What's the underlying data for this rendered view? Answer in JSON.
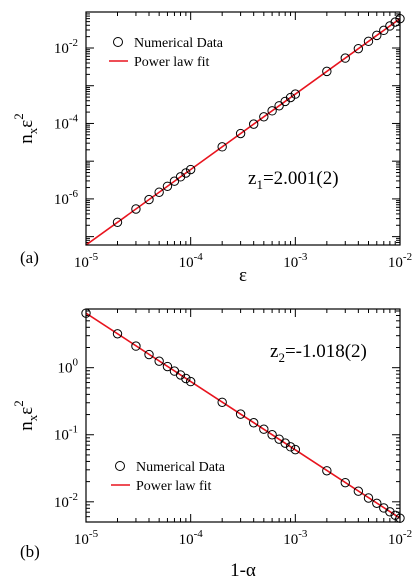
{
  "chart_data": [
    {
      "type": "scatter",
      "panel_label": "(a)",
      "xlabel": "ε",
      "ylabel": {
        "base": "n",
        "sub": "x",
        "factor": "ε",
        "sup": "2"
      },
      "xscale": "log",
      "yscale": "log",
      "xlim": [
        1e-05,
        0.01
      ],
      "ylim": [
        6e-08,
        0.09
      ],
      "xticks": [
        {
          "value": 1e-05,
          "base": "10",
          "exp": "-5"
        },
        {
          "value": 0.0001,
          "base": "10",
          "exp": "-4"
        },
        {
          "value": 0.001,
          "base": "10",
          "exp": "-3"
        },
        {
          "value": 0.01,
          "base": "10",
          "exp": "-2"
        }
      ],
      "yticks": [
        {
          "value": 1e-06,
          "base": "10",
          "exp": "-6"
        },
        {
          "value": 0.0001,
          "base": "10",
          "exp": "-4"
        },
        {
          "value": 0.01,
          "base": "10",
          "exp": "-2"
        }
      ],
      "legend_position": "top-left",
      "annotation": {
        "base": "z",
        "sub": "1",
        "rest": "=2.001(2)"
      },
      "series": [
        {
          "name": "Numerical Data",
          "style": "open-circle",
          "color": "#000000",
          "x": [
            2e-05,
            3e-05,
            4e-05,
            5e-05,
            6e-05,
            7e-05,
            8e-05,
            9e-05,
            0.0001,
            0.0002,
            0.0003,
            0.0004,
            0.0005,
            0.0006,
            0.0007,
            0.0008,
            0.0009,
            0.001,
            0.002,
            0.003,
            0.004,
            0.005,
            0.006,
            0.007,
            0.008,
            0.009,
            0.01
          ],
          "y": [
            2.4e-07,
            5.4e-07,
            9.6e-07,
            1.5e-06,
            2.16e-06,
            2.94e-06,
            3.84e-06,
            4.86e-06,
            6e-06,
            2.4e-05,
            5.4e-05,
            9.6e-05,
            0.00015,
            0.000216,
            0.000294,
            0.000384,
            0.000486,
            0.0006,
            0.0024,
            0.0054,
            0.0096,
            0.015,
            0.0216,
            0.0294,
            0.0384,
            0.0486,
            0.06
          ]
        },
        {
          "name": "Power law fit",
          "style": "line",
          "color": "#e8141e",
          "x": [
            1e-05,
            0.01
          ],
          "y": [
            6e-08,
            0.06
          ]
        }
      ]
    },
    {
      "type": "scatter",
      "panel_label": "(b)",
      "xlabel": "1-α",
      "ylabel": {
        "base": "n",
        "sub": "x",
        "factor": "ε",
        "sup": "2"
      },
      "xscale": "log",
      "yscale": "log",
      "xlim": [
        1e-05,
        0.01
      ],
      "ylim": [
        0.005,
        7.5
      ],
      "xticks": [
        {
          "value": 1e-05,
          "base": "10",
          "exp": "-5"
        },
        {
          "value": 0.0001,
          "base": "10",
          "exp": "-4"
        },
        {
          "value": 0.001,
          "base": "10",
          "exp": "-3"
        },
        {
          "value": 0.01,
          "base": "10",
          "exp": "-2"
        }
      ],
      "yticks": [
        {
          "value": 0.01,
          "base": "10",
          "exp": "-2"
        },
        {
          "value": 0.1,
          "base": "10",
          "exp": "-1"
        },
        {
          "value": 1,
          "base": "10",
          "exp": "0"
        }
      ],
      "legend_position": "bottom-left",
      "annotation": {
        "base": "z",
        "sub": "2",
        "rest": "=-1.018(2)"
      },
      "series": [
        {
          "name": "Numerical Data",
          "style": "open-circle",
          "color": "#000000",
          "x": [
            1e-05,
            2e-05,
            3e-05,
            4e-05,
            5e-05,
            6e-05,
            7e-05,
            8e-05,
            9e-05,
            0.0001,
            0.0002,
            0.0003,
            0.0004,
            0.0005,
            0.0006,
            0.0007,
            0.0008,
            0.0009,
            0.001,
            0.002,
            0.003,
            0.004,
            0.005,
            0.006,
            0.007,
            0.008,
            0.009,
            0.01
          ],
          "y": [
            6.5,
            3.2,
            2.1,
            1.57,
            1.25,
            1.04,
            0.89,
            0.78,
            0.69,
            0.62,
            0.305,
            0.203,
            0.151,
            0.121,
            0.1,
            0.086,
            0.075,
            0.066,
            0.06,
            0.029,
            0.0193,
            0.0144,
            0.0114,
            0.0095,
            0.0081,
            0.0071,
            0.0063,
            0.0057
          ]
        },
        {
          "name": "Power law fit",
          "style": "line",
          "color": "#e8141e",
          "x": [
            1e-05,
            0.01
          ],
          "y": [
            6.5,
            0.0057
          ]
        }
      ]
    }
  ]
}
